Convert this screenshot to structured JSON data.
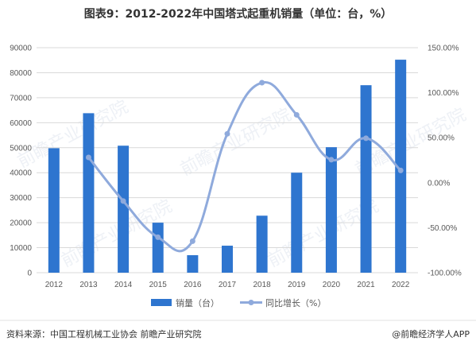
{
  "title": "图表9：2012-2022年中国塔式起重机销量（单位：台，%）",
  "source_text": "资料来源：中国工程机械工业协会 前瞻产业研究院",
  "brand_text": "@前瞻经济学人APP",
  "watermark_text": "前瞻产业研究院",
  "colors": {
    "bar": "#2E75CF",
    "line": "#8FAADC",
    "line_marker": "#8FAADC",
    "grid": "#D9D9D9",
    "axis": "#BFBFBF"
  },
  "chart_data": {
    "type": "bar",
    "categories": [
      "2012",
      "2013",
      "2014",
      "2015",
      "2016",
      "2017",
      "2018",
      "2019",
      "2020",
      "2021",
      "2022"
    ],
    "series": [
      {
        "name": "销量（台）",
        "type": "bar",
        "axis": "left",
        "values": [
          49800,
          63800,
          50800,
          20000,
          7000,
          10800,
          22800,
          40000,
          50200,
          75000,
          85200
        ]
      },
      {
        "name": "同比增长（%）",
        "type": "line",
        "axis": "right",
        "smooth": true,
        "values": [
          null,
          28.1,
          -20.4,
          -60.6,
          -65,
          54.3,
          111.1,
          75.4,
          25.5,
          49.4,
          13.6
        ]
      }
    ],
    "left_axis": {
      "ylim": [
        0,
        90000
      ],
      "ticks": [
        0,
        10000,
        20000,
        30000,
        40000,
        50000,
        60000,
        70000,
        80000,
        90000
      ],
      "tick_labels": [
        "0",
        "10000",
        "20000",
        "30000",
        "40000",
        "50000",
        "60000",
        "70000",
        "80000",
        "90000"
      ]
    },
    "right_axis": {
      "ylim": [
        -100,
        150
      ],
      "ticks": [
        -100,
        -50,
        0,
        50,
        100,
        150
      ],
      "tick_labels": [
        "-100.00%",
        "-50.00%",
        "0.00%",
        "50.00%",
        "100.00%",
        "150.00%"
      ]
    },
    "grid": true,
    "legend_position": "bottom"
  }
}
